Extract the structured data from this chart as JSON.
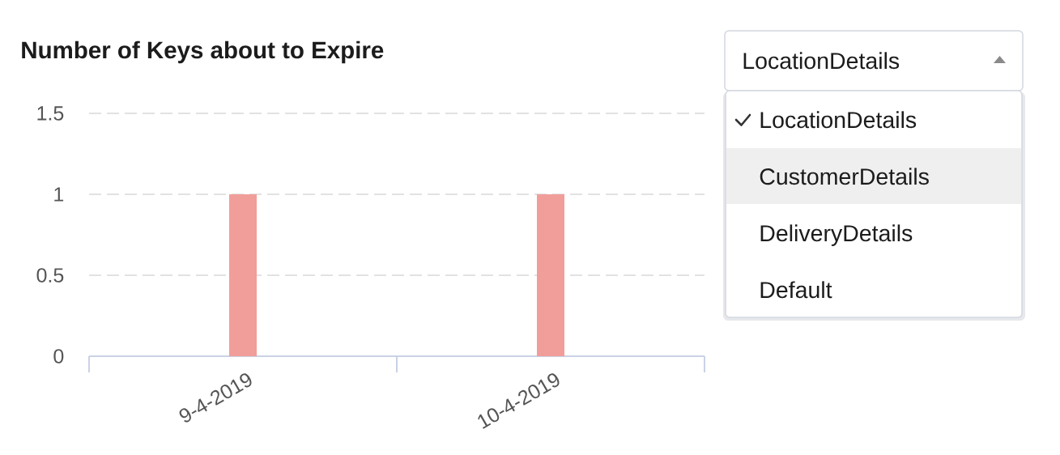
{
  "chart_data": {
    "type": "bar",
    "title": "Number of Keys about to Expire",
    "categories": [
      "9-4-2019",
      "10-4-2019"
    ],
    "values": [
      1,
      1
    ],
    "color": "#f19e9a",
    "ylim": [
      0,
      1.5
    ],
    "yticks": [
      0,
      0.5,
      1,
      1.5
    ],
    "grid": "y",
    "annotations": [
      "LocationDetails",
      "LocationDetails",
      "CustomerDetails",
      "DeliveryDetails",
      "Default"
    ]
  }
}
